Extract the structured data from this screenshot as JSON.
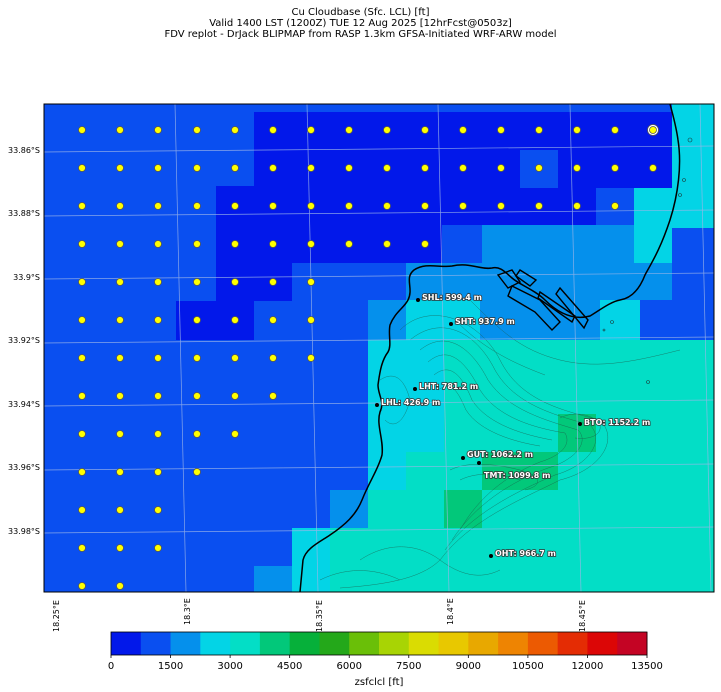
{
  "title": {
    "line1": "Cu Cloudbase (Sfc. LCL) [ft]",
    "line2": "Valid 1400 LST (1200Z) TUE 12 Aug 2025 [12hrFcst@0503z]",
    "line3": "FDV replot - DrJack BLIPMAP from RASP 1.3km GFSA-Initiated WRF-ARW model"
  },
  "map": {
    "latitude_labels": [
      "33.86°S",
      "33.88°S",
      "33.9°S",
      "33.92°S",
      "33.94°S",
      "33.96°S",
      "33.98°S"
    ],
    "longitude_labels": [
      "18.25°E",
      "18.3°E",
      "18.35°E",
      "18.4°E",
      "18.45°E"
    ],
    "stations": [
      {
        "code": "SHL",
        "label": "SHL: 599.4 m"
      },
      {
        "code": "SHT",
        "label": "SHT: 937.9 m"
      },
      {
        "code": "LHT",
        "label": "LHT: 781.2 m"
      },
      {
        "code": "LHL",
        "label": "LHL: 426.9 m"
      },
      {
        "code": "BTO",
        "label": "BTO: 1152.2 m"
      },
      {
        "code": "GUT",
        "label": "GUT: 1062.2 m"
      },
      {
        "code": "TMT",
        "label": "TMT: 1099.8 m"
      },
      {
        "code": "OHT",
        "label": "OHT: 966.7 m"
      }
    ],
    "colors": {
      "deep_blue": "#0218ea",
      "blue": "#0a4ff0",
      "light_blue": "#0590ec",
      "cyan": "#03d4e6",
      "turquoise": "#03dec6",
      "green": "#02c87a",
      "marker": "#ffff00"
    }
  },
  "colorbar": {
    "label": "zsfclcl [ft]",
    "ticks": [
      "0",
      "1500",
      "3000",
      "4500",
      "6000",
      "7500",
      "9000",
      "10500",
      "12000",
      "13500"
    ],
    "colors": [
      "#0218ea",
      "#0a4ff0",
      "#0590ec",
      "#03d4e6",
      "#03dec6",
      "#02c87a",
      "#06b03a",
      "#24a81a",
      "#6abf08",
      "#a8d404",
      "#dadc02",
      "#e8c800",
      "#e8a800",
      "#ee8402",
      "#ec5a02",
      "#e42c04",
      "#dc0606",
      "#c40424"
    ]
  }
}
